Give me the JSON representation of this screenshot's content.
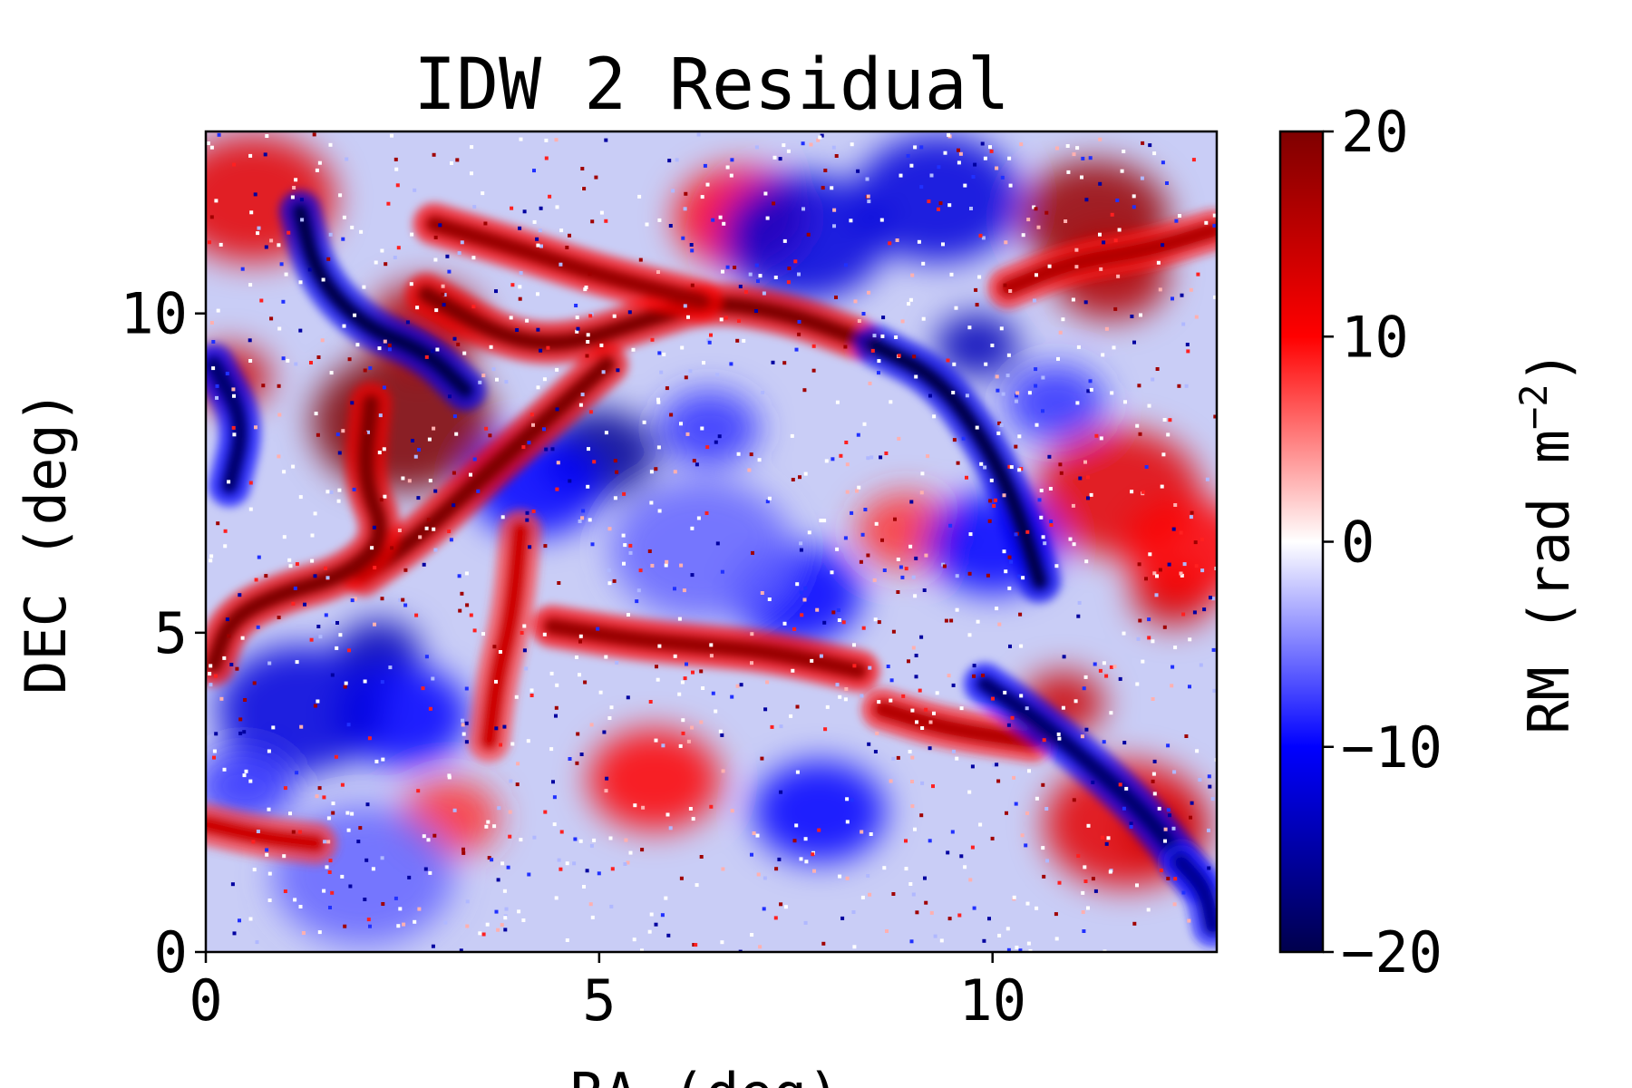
{
  "chart_data": {
    "type": "heatmap",
    "title": "IDW 2 Residual",
    "xlabel": "RA (deg)",
    "ylabel": "DEC (deg)",
    "xlim": [
      0,
      12.85
    ],
    "ylim": [
      0,
      12.85
    ],
    "xticks": [
      0,
      5,
      10
    ],
    "xtick_labels": [
      "0",
      "5",
      "10"
    ],
    "yticks": [
      0,
      5,
      10
    ],
    "ytick_labels": [
      "0",
      "5",
      "10"
    ],
    "colorbar": {
      "label": "RM (rad m⁻²)",
      "label_main": "RM (rad m",
      "label_sup": "−2",
      "label_close": ")",
      "colormap": "seismic",
      "range": [
        -20,
        20
      ],
      "ticks": [
        -20,
        -10,
        0,
        10,
        20
      ],
      "tick_labels": [
        "−20",
        "−10",
        "0",
        "10",
        "20"
      ]
    },
    "colormap_stops": [
      "#00004c",
      "#0000ff",
      "#ffffff",
      "#ff0000",
      "#7f0000"
    ],
    "features": {
      "filaments": [
        {
          "sign": "positive",
          "value": 20,
          "points": [
            [
              2.8,
              10.3
            ],
            [
              3.8,
              9.6
            ],
            [
              4.6,
              9.5
            ],
            [
              5.6,
              9.9
            ],
            [
              6.4,
              10.2
            ],
            [
              7.4,
              10.0
            ],
            [
              8.3,
              9.6
            ]
          ]
        },
        {
          "sign": "positive",
          "value": 18,
          "points": [
            [
              2.9,
              11.4
            ],
            [
              4.0,
              11.0
            ],
            [
              5.0,
              10.6
            ],
            [
              6.3,
              10.2
            ]
          ]
        },
        {
          "sign": "positive",
          "value": 20,
          "points": [
            [
              2.0,
              5.9
            ],
            [
              2.7,
              6.5
            ],
            [
              3.4,
              7.3
            ],
            [
              4.2,
              8.2
            ],
            [
              5.1,
              9.2
            ]
          ]
        },
        {
          "sign": "positive",
          "value": 20,
          "points": [
            [
              2.1,
              8.6
            ],
            [
              2.0,
              7.4
            ],
            [
              2.3,
              6.5
            ],
            [
              1.8,
              5.9
            ],
            [
              0.9,
              5.6
            ],
            [
              0.3,
              5.2
            ],
            [
              0.1,
              4.5
            ]
          ]
        },
        {
          "sign": "positive",
          "value": 18,
          "points": [
            [
              4.4,
              5.1
            ],
            [
              5.4,
              4.9
            ],
            [
              6.3,
              4.8
            ],
            [
              7.2,
              4.7
            ],
            [
              8.3,
              4.4
            ]
          ]
        },
        {
          "sign": "positive",
          "value": 16,
          "points": [
            [
              8.6,
              3.8
            ],
            [
              9.4,
              3.5
            ],
            [
              10.5,
              3.3
            ]
          ]
        },
        {
          "sign": "positive",
          "value": 16,
          "points": [
            [
              10.2,
              10.4
            ],
            [
              11.0,
              10.8
            ],
            [
              12.0,
              11.0
            ],
            [
              12.8,
              11.3
            ]
          ]
        },
        {
          "sign": "positive",
          "value": 14,
          "points": [
            [
              4.0,
              6.6
            ],
            [
              3.9,
              5.3
            ],
            [
              3.7,
              4.3
            ],
            [
              3.6,
              3.3
            ]
          ]
        },
        {
          "sign": "positive",
          "value": 14,
          "points": [
            [
              0.0,
              2.0
            ],
            [
              0.7,
              1.8
            ],
            [
              1.4,
              1.7
            ]
          ]
        },
        {
          "sign": "negative",
          "value": -20,
          "points": [
            [
              8.5,
              9.5
            ],
            [
              9.3,
              9.0
            ],
            [
              9.9,
              8.0
            ],
            [
              10.3,
              7.0
            ],
            [
              10.6,
              5.8
            ]
          ]
        },
        {
          "sign": "negative",
          "value": -20,
          "points": [
            [
              1.2,
              11.6
            ],
            [
              1.4,
              10.6
            ],
            [
              2.0,
              9.8
            ],
            [
              2.8,
              9.4
            ],
            [
              3.3,
              8.8
            ]
          ]
        },
        {
          "sign": "negative",
          "value": -18,
          "points": [
            [
              9.9,
              4.2
            ],
            [
              10.5,
              3.7
            ],
            [
              11.2,
              3.0
            ],
            [
              12.0,
              2.1
            ],
            [
              12.6,
              1.1
            ]
          ]
        },
        {
          "sign": "negative",
          "value": -18,
          "points": [
            [
              0.3,
              7.3
            ],
            [
              0.5,
              8.3
            ],
            [
              0.1,
              9.2
            ]
          ]
        },
        {
          "sign": "negative",
          "value": -16,
          "points": [
            [
              12.4,
              1.4
            ],
            [
              12.7,
              1.0
            ],
            [
              12.8,
              0.4
            ]
          ]
        }
      ],
      "blobs": [
        {
          "x": 2.5,
          "y": 8.3,
          "value": 20
        },
        {
          "x": 2.8,
          "y": 9.8,
          "value": 16
        },
        {
          "x": 11.3,
          "y": 11.5,
          "value": 18
        },
        {
          "x": 11.5,
          "y": 10.6,
          "value": 16
        },
        {
          "x": 11.6,
          "y": 7.2,
          "value": 12
        },
        {
          "x": 12.3,
          "y": 5.6,
          "value": 14
        },
        {
          "x": 12.5,
          "y": 6.3,
          "value": 10
        },
        {
          "x": 10.9,
          "y": 3.9,
          "value": 14
        },
        {
          "x": 11.7,
          "y": 2.0,
          "value": 12
        },
        {
          "x": 12.2,
          "y": 1.9,
          "value": 14
        },
        {
          "x": 5.7,
          "y": 2.7,
          "value": 10
        },
        {
          "x": 3.1,
          "y": 2.1,
          "value": 8
        },
        {
          "x": 0.6,
          "y": 11.8,
          "value": 12
        },
        {
          "x": 0.3,
          "y": 9.0,
          "value": 14
        },
        {
          "x": 6.8,
          "y": 11.5,
          "value": 10
        },
        {
          "x": 8.9,
          "y": 6.6,
          "value": 8
        },
        {
          "x": 9.3,
          "y": 11.8,
          "value": -12
        },
        {
          "x": 9.8,
          "y": 9.5,
          "value": -14
        },
        {
          "x": 7.6,
          "y": 11.2,
          "value": -12
        },
        {
          "x": 5.0,
          "y": 7.8,
          "value": -16
        },
        {
          "x": 4.2,
          "y": 7.3,
          "value": -10
        },
        {
          "x": 2.2,
          "y": 4.7,
          "value": -14
        },
        {
          "x": 2.5,
          "y": 3.7,
          "value": -10
        },
        {
          "x": 6.4,
          "y": 8.2,
          "value": -8
        },
        {
          "x": 7.5,
          "y": 5.6,
          "value": -10
        },
        {
          "x": 1.2,
          "y": 3.8,
          "value": -12
        },
        {
          "x": 0.5,
          "y": 2.6,
          "value": -8
        },
        {
          "x": 2.0,
          "y": 1.2,
          "value": -6
        },
        {
          "x": 7.8,
          "y": 2.2,
          "value": -10
        },
        {
          "x": 10.0,
          "y": 6.4,
          "value": -10
        },
        {
          "x": 10.8,
          "y": 8.6,
          "value": -8
        },
        {
          "x": 6.3,
          "y": 6.3,
          "value": -6
        }
      ]
    }
  }
}
